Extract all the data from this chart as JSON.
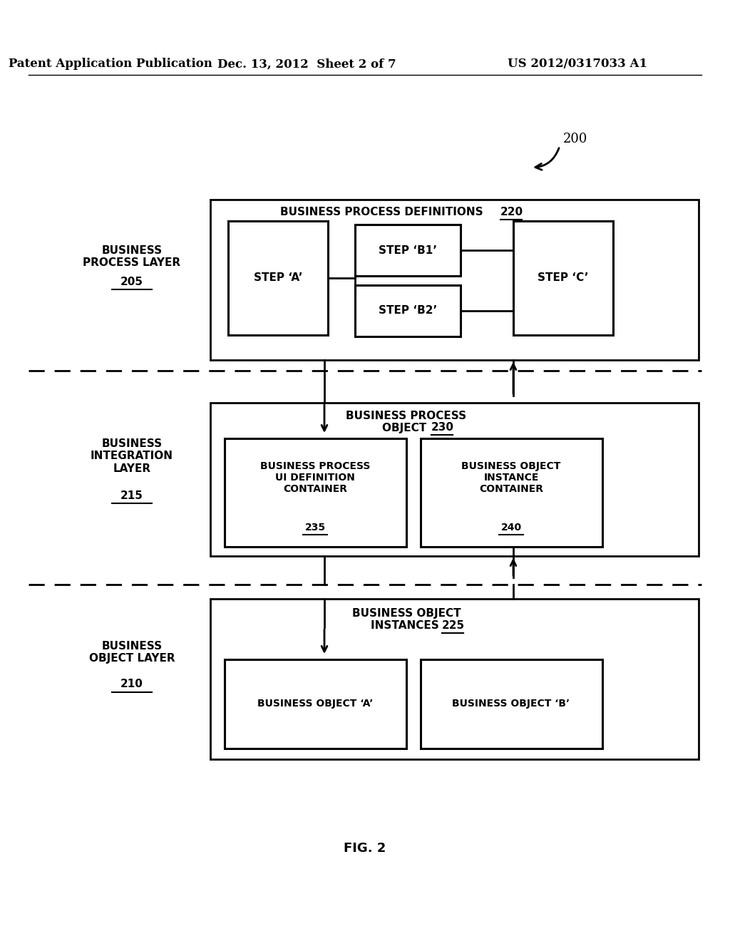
{
  "bg_color": "#ffffff",
  "header_left": "Patent Application Publication",
  "header_mid": "Dec. 13, 2012  Sheet 2 of 7",
  "header_right": "US 2012/0317033 A1",
  "fig_label": "FIG. 2",
  "ref_num": "200",
  "layer1_label": "BUSINESS\nPROCESS LAYER",
  "layer1_num": "205",
  "layer2_label": "BUSINESS\nINTEGRATION\nLAYER",
  "layer2_num": "215",
  "layer3_label": "BUSINESS\nOBJECT LAYER",
  "layer3_num": "210",
  "box1_title": "BUSINESS PROCESS DEFINITIONS",
  "box1_num": "220",
  "box2_title1": "BUSINESS PROCESS",
  "box2_title2": "OBJECT",
  "box2_num": "230",
  "box3_title1": "BUSINESS OBJECT",
  "box3_title2": "INSTANCES",
  "box3_num": "225",
  "stepA": "STEP ‘A’",
  "stepB1": "STEP ‘B1’",
  "stepB2": "STEP ‘B2’",
  "stepC": "STEP ‘C’",
  "container1_lines": [
    "BUSINESS PROCESS",
    "UI DEFINITION",
    "CONTAINER"
  ],
  "container1_num": "235",
  "container2_lines": [
    "BUSINESS OBJECT",
    "INSTANCE",
    "CONTAINER"
  ],
  "container2_num": "240",
  "obj_a": "BUSINESS OBJECT ‘A’",
  "obj_b": "BUSINESS OBJECT ‘B’"
}
